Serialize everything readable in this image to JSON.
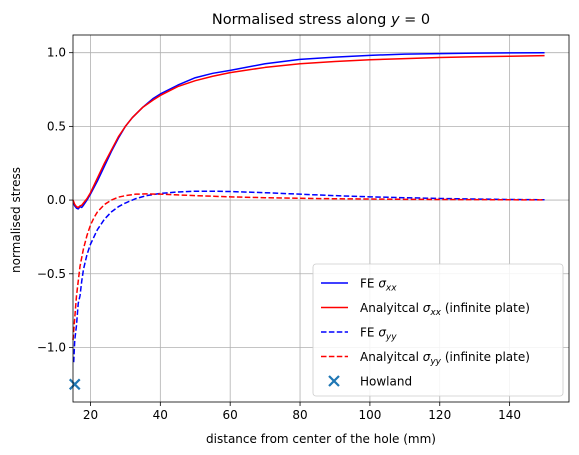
{
  "chart_data": {
    "type": "line",
    "title_main": "Normalised stress along ",
    "title_var": "y",
    "title_eq": " = 0",
    "xlabel": "distance from center of the hole (mm)",
    "ylabel": "normalised stress",
    "xlim": [
      15,
      157
    ],
    "ylim": [
      -1.37,
      1.12
    ],
    "xticks": [
      20,
      40,
      60,
      80,
      100,
      120,
      140
    ],
    "yticks": [
      -1.0,
      -0.5,
      0.0,
      0.5,
      1.0
    ],
    "xtick_labels": [
      "20",
      "40",
      "60",
      "80",
      "100",
      "120",
      "140"
    ],
    "ytick_labels": [
      "−1.0",
      "−0.5",
      "0.0",
      "0.5",
      "1.0"
    ],
    "grid": true,
    "legend_position": "lower-right",
    "series": [
      {
        "name_prefix": "FE ",
        "name_sym": "σ",
        "name_sub": "xx",
        "name_suffix": "",
        "color": "#0000ff",
        "dash": "solid",
        "x": [
          15.1,
          15.5,
          16,
          16.5,
          17,
          17.5,
          18,
          19,
          20,
          22,
          24,
          26,
          28,
          30,
          32,
          35,
          38,
          40,
          45,
          50,
          55,
          60,
          70,
          80,
          90,
          100,
          110,
          120,
          130,
          140,
          150
        ],
        "y": [
          -0.02,
          -0.04,
          -0.055,
          -0.06,
          -0.045,
          -0.05,
          -0.035,
          0.0,
          0.04,
          0.13,
          0.23,
          0.33,
          0.42,
          0.5,
          0.56,
          0.63,
          0.69,
          0.72,
          0.78,
          0.83,
          0.86,
          0.88,
          0.925,
          0.955,
          0.97,
          0.982,
          0.99,
          0.994,
          0.997,
          0.999,
          1.0
        ]
      },
      {
        "name_prefix": "Analyitcal ",
        "name_sym": "σ",
        "name_sub": "xx",
        "name_suffix": " (infinite plate)",
        "color": "#ff0000",
        "dash": "solid",
        "x": [
          15,
          15.5,
          16,
          16.5,
          17,
          17.5,
          18,
          19,
          20,
          22,
          24,
          26,
          28,
          30,
          32,
          35,
          38,
          40,
          45,
          50,
          55,
          60,
          70,
          80,
          90,
          100,
          110,
          120,
          130,
          140,
          150
        ],
        "y": [
          0.0,
          -0.03,
          -0.045,
          -0.05,
          -0.04,
          -0.035,
          -0.02,
          0.01,
          0.05,
          0.15,
          0.25,
          0.34,
          0.43,
          0.5,
          0.56,
          0.63,
          0.68,
          0.71,
          0.77,
          0.81,
          0.84,
          0.865,
          0.9,
          0.925,
          0.94,
          0.952,
          0.96,
          0.967,
          0.972,
          0.976,
          0.98
        ]
      },
      {
        "name_prefix": "FE ",
        "name_sym": "σ",
        "name_sub": "yy",
        "name_suffix": "",
        "color": "#0000ff",
        "dash": "dashed",
        "x": [
          15.2,
          15.5,
          16,
          16.5,
          17,
          17.5,
          18,
          19,
          20,
          22,
          24,
          26,
          28,
          30,
          33,
          36,
          40,
          45,
          50,
          55,
          60,
          70,
          80,
          90,
          100,
          110,
          120,
          130,
          140,
          150
        ],
        "y": [
          -1.1,
          -0.95,
          -0.85,
          -0.7,
          -0.65,
          -0.55,
          -0.47,
          -0.37,
          -0.3,
          -0.2,
          -0.13,
          -0.08,
          -0.045,
          -0.02,
          0.01,
          0.03,
          0.045,
          0.055,
          0.06,
          0.06,
          0.058,
          0.05,
          0.04,
          0.03,
          0.022,
          0.016,
          0.011,
          0.007,
          0.004,
          0.002
        ]
      },
      {
        "name_prefix": "Analyitcal ",
        "name_sym": "σ",
        "name_sub": "yy",
        "name_suffix": " (infinite plate)",
        "color": "#ff0000",
        "dash": "dashed",
        "x": [
          15,
          15.5,
          16,
          16.5,
          17,
          18,
          19,
          20,
          21,
          22,
          24,
          26,
          28,
          30,
          33,
          36,
          40,
          45,
          50,
          60,
          70,
          80,
          90,
          100,
          110,
          120,
          130,
          140,
          150
        ],
        "y": [
          -0.95,
          -0.8,
          -0.65,
          -0.55,
          -0.45,
          -0.33,
          -0.24,
          -0.17,
          -0.12,
          -0.08,
          -0.03,
          0.0,
          0.02,
          0.03,
          0.04,
          0.042,
          0.04,
          0.035,
          0.03,
          0.022,
          0.016,
          0.012,
          0.009,
          0.007,
          0.005,
          0.004,
          0.003,
          0.002,
          0.001
        ]
      }
    ],
    "markers": [
      {
        "name": "Howland",
        "x": 15.5,
        "y": -1.25,
        "symbol": "x",
        "color": "#1f77b4"
      }
    ]
  }
}
